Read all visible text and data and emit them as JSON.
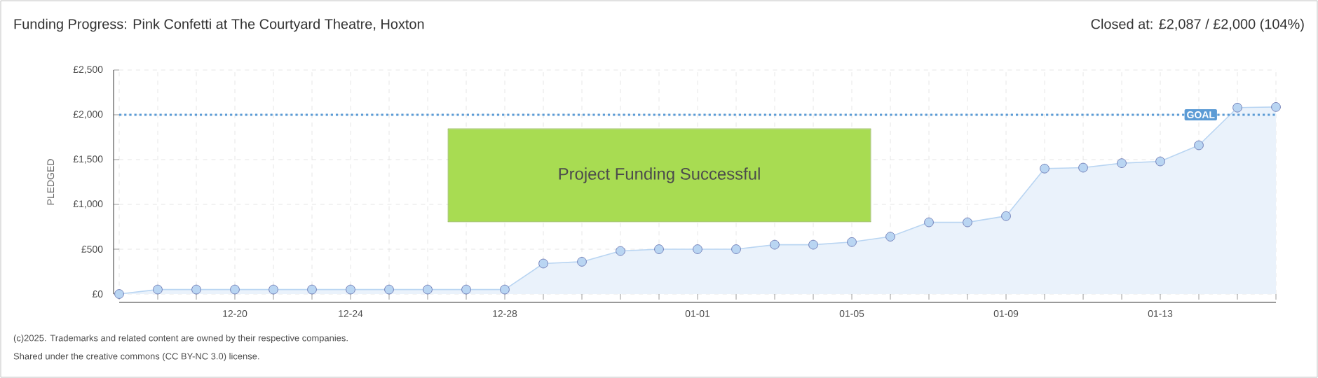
{
  "chart_data": {
    "type": "area",
    "title": "Funding Progress: Pink Confetti at The Courtyard Theatre, Hoxton",
    "subtitle": "Closed at: £2,087 / £2,000 (104%)",
    "ylabel": "PLEDGED",
    "categories": [
      null,
      null,
      null,
      "12-20",
      null,
      null,
      "12-24",
      null,
      null,
      null,
      "12-28",
      null,
      null,
      null,
      null,
      "01-01",
      null,
      null,
      null,
      "01-05",
      null,
      null,
      null,
      "01-09",
      null,
      null,
      null,
      "01-13",
      null,
      null,
      null
    ],
    "series": [
      {
        "color": "#b9d5f2",
        "values": [
          0,
          50,
          50,
          50,
          50,
          50,
          50,
          50,
          50,
          50,
          50,
          340,
          360,
          480,
          500,
          500,
          500,
          550,
          550,
          580,
          640,
          800,
          800,
          870,
          1400,
          1410,
          1460,
          1480,
          1660,
          2080,
          2087
        ]
      }
    ],
    "ylim": [
      0,
      2500
    ],
    "yticks": [
      {
        "value": 0,
        "label": "£0"
      },
      {
        "value": 500,
        "label": "£500"
      },
      {
        "value": 1000,
        "label": "£1,000"
      },
      {
        "value": 1500,
        "label": "£1,500"
      },
      {
        "value": 2000,
        "label": "£2,000"
      },
      {
        "value": 2500,
        "label": "£2,500"
      }
    ],
    "grid": true,
    "marker": "circle",
    "ref_lines": [
      {
        "axis": "y",
        "value": 2000,
        "label": "GOAL",
        "color": "#5b9bd5",
        "line_style": "dotted"
      }
    ],
    "annotations": [
      "Project Funding Successful",
      "(c)2025. Trademarks and related content are owned by their respective companies.",
      "Shared under the creative commons (CC BY-NC 3.0) license."
    ]
  }
}
